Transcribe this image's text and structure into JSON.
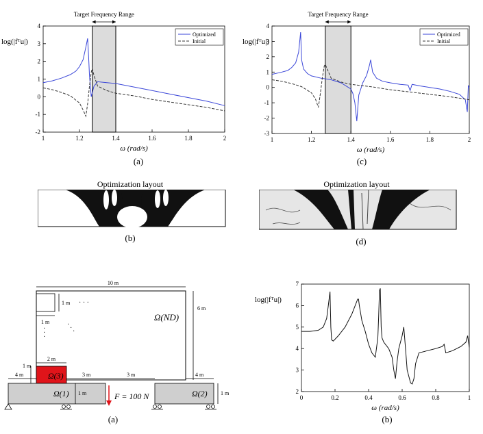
{
  "chart_data": [
    {
      "type": "line",
      "panel": "(a)",
      "title": "Target Frequency Range",
      "xlabel": "ω (rad/s)",
      "ylabel": "log(|fᵀu|)",
      "xlim": [
        1,
        2
      ],
      "ylim": [
        -2,
        4
      ],
      "xticks": [
        "1",
        "1.2",
        "1.4",
        "1.6",
        "1.8",
        "2"
      ],
      "yticks": [
        "-2",
        "-1",
        "0",
        "1",
        "2",
        "3",
        "4"
      ],
      "shaded_range": [
        1.27,
        1.4
      ],
      "legend": "top-right",
      "series": [
        {
          "name": "Optimized",
          "color": "#3a46d8",
          "dash": false,
          "x": [
            1.0,
            1.05,
            1.1,
            1.15,
            1.18,
            1.2,
            1.22,
            1.235,
            1.245,
            1.25,
            1.255,
            1.265,
            1.28,
            1.3,
            1.35,
            1.4,
            1.5,
            1.6,
            1.7,
            1.8,
            1.9,
            2.0
          ],
          "y": [
            0.8,
            0.9,
            1.05,
            1.25,
            1.45,
            1.7,
            2.1,
            2.8,
            3.3,
            2.3,
            1.2,
            0.0,
            0.6,
            0.85,
            0.8,
            0.75,
            0.55,
            0.35,
            0.15,
            -0.05,
            -0.25,
            -0.5
          ]
        },
        {
          "name": "Initial",
          "color": "#333333",
          "dash": true,
          "x": [
            1.0,
            1.05,
            1.1,
            1.15,
            1.2,
            1.22,
            1.235,
            1.245,
            1.255,
            1.265,
            1.27,
            1.28,
            1.3,
            1.35,
            1.4,
            1.5,
            1.6,
            1.7,
            1.8,
            1.9,
            2.0
          ],
          "y": [
            0.5,
            0.4,
            0.25,
            0.05,
            -0.35,
            -0.75,
            -1.1,
            -0.4,
            0.6,
            1.4,
            1.6,
            1.2,
            0.6,
            0.35,
            0.2,
            0.05,
            -0.15,
            -0.3,
            -0.45,
            -0.6,
            -0.8
          ]
        }
      ]
    },
    {
      "type": "line",
      "panel": "(c)",
      "title": "Target Frequency Range",
      "xlabel": "ω (rad/s)",
      "ylabel": "log(|fᵀu|)",
      "xlim": [
        1,
        2
      ],
      "ylim": [
        -3,
        4
      ],
      "xticks": [
        "1",
        "1.2",
        "1.4",
        "1.6",
        "1.8",
        "2"
      ],
      "yticks": [
        "-3",
        "-2",
        "-1",
        "0",
        "1",
        "2",
        "3",
        "4"
      ],
      "shaded_range": [
        1.27,
        1.4
      ],
      "legend": "top-right",
      "series": [
        {
          "name": "Optimized",
          "color": "#3a46d8",
          "dash": false,
          "x": [
            1.0,
            1.05,
            1.08,
            1.1,
            1.12,
            1.135,
            1.145,
            1.15,
            1.16,
            1.18,
            1.2,
            1.25,
            1.3,
            1.35,
            1.4,
            1.41,
            1.42,
            1.43,
            1.44,
            1.46,
            1.48,
            1.495,
            1.5,
            1.51,
            1.53,
            1.56,
            1.6,
            1.65,
            1.69,
            1.7,
            1.71,
            1.75,
            1.8,
            1.85,
            1.9,
            1.95,
            1.98,
            1.99,
            1.995,
            2.0
          ],
          "y": [
            0.85,
            1.0,
            1.1,
            1.3,
            1.6,
            2.3,
            3.6,
            1.8,
            1.2,
            0.9,
            0.75,
            0.6,
            0.5,
            0.3,
            -0.1,
            -0.4,
            -1.0,
            -2.2,
            -0.5,
            0.3,
            0.8,
            1.5,
            1.8,
            1.0,
            0.6,
            0.4,
            0.3,
            0.2,
            0.15,
            -0.2,
            0.2,
            0.1,
            0.0,
            -0.1,
            -0.25,
            -0.45,
            -0.8,
            -1.6,
            0.1,
            0.0
          ]
        },
        {
          "name": "Initial",
          "color": "#333333",
          "dash": true,
          "x": [
            1.0,
            1.05,
            1.1,
            1.15,
            1.2,
            1.22,
            1.235,
            1.245,
            1.255,
            1.265,
            1.27,
            1.28,
            1.3,
            1.35,
            1.4,
            1.5,
            1.6,
            1.7,
            1.8,
            1.9,
            2.0
          ],
          "y": [
            0.5,
            0.4,
            0.25,
            0.05,
            -0.35,
            -0.75,
            -1.3,
            -0.4,
            0.6,
            1.4,
            1.5,
            1.2,
            0.6,
            0.35,
            0.2,
            0.05,
            -0.15,
            -0.3,
            -0.45,
            -0.6,
            -0.8
          ]
        }
      ]
    },
    {
      "type": "line",
      "panel": "(b) lower",
      "title": "",
      "xlabel": "ω (rad/s)",
      "ylabel": "log(|fᵀu|)",
      "xlim": [
        0,
        1
      ],
      "ylim": [
        2,
        7
      ],
      "xticks": [
        "0",
        "0.2",
        "0.4",
        "0.6",
        "0.8",
        "1"
      ],
      "yticks": [
        "2",
        "3",
        "4",
        "5",
        "6",
        "7"
      ],
      "series": [
        {
          "name": "",
          "color": "#111111",
          "dash": false,
          "x": [
            0.0,
            0.05,
            0.1,
            0.13,
            0.15,
            0.16,
            0.17,
            0.175,
            0.18,
            0.19,
            0.22,
            0.26,
            0.3,
            0.32,
            0.335,
            0.34,
            0.345,
            0.36,
            0.38,
            0.4,
            0.42,
            0.44,
            0.455,
            0.46,
            0.465,
            0.47,
            0.475,
            0.48,
            0.49,
            0.5,
            0.52,
            0.54,
            0.55,
            0.56,
            0.57,
            0.58,
            0.6,
            0.61,
            0.62,
            0.63,
            0.65,
            0.66,
            0.67,
            0.68,
            0.7,
            0.75,
            0.8,
            0.84,
            0.85,
            0.86,
            0.9,
            0.95,
            0.98,
            0.99,
            1.0
          ],
          "y": [
            4.8,
            4.8,
            4.85,
            5.0,
            5.4,
            6.0,
            6.65,
            5.0,
            4.4,
            4.35,
            4.6,
            5.0,
            5.6,
            6.0,
            6.3,
            6.3,
            6.0,
            5.3,
            4.8,
            4.2,
            3.8,
            3.6,
            4.5,
            5.5,
            6.7,
            6.8,
            5.0,
            4.5,
            4.3,
            4.2,
            4.0,
            3.6,
            3.0,
            2.6,
            3.4,
            4.0,
            4.6,
            5.0,
            4.0,
            3.0,
            2.4,
            2.35,
            2.6,
            3.3,
            3.8,
            3.9,
            4.0,
            4.1,
            4.2,
            3.8,
            3.9,
            4.1,
            4.3,
            4.6,
            4.05
          ]
        }
      ]
    }
  ],
  "layouts": {
    "b": {
      "title": "Optimization layout",
      "caption": "(b)"
    },
    "d": {
      "title": "Optimization layout",
      "caption": "(d)"
    }
  },
  "captions": {
    "a": "(a)",
    "c": "(c)",
    "sa": "(a)",
    "sb": "(b)"
  },
  "schematic": {
    "dim_width": "10 m",
    "dim_height": "6 m",
    "dim_cell_h": "1 m",
    "dim_cell_w": "1 m",
    "dim_left": "4 m",
    "dim_mass_h": "1 m",
    "dim_mass_w": "2 m",
    "dim_gap_left": "3 m",
    "dim_gap_right": "3 m",
    "dim_right": "4 m",
    "dim_support_left": "1 m",
    "dim_support_right": "1 m",
    "label_design": "Ω(ND)",
    "label_mass": "Ω(3)",
    "label_support1": "Ω(1)",
    "label_support2": "Ω(2)",
    "force_label": "F = 100 N",
    "mass_color": "#e0141a",
    "support_color": "#cfcfcf",
    "force_color": "#e0141a"
  }
}
